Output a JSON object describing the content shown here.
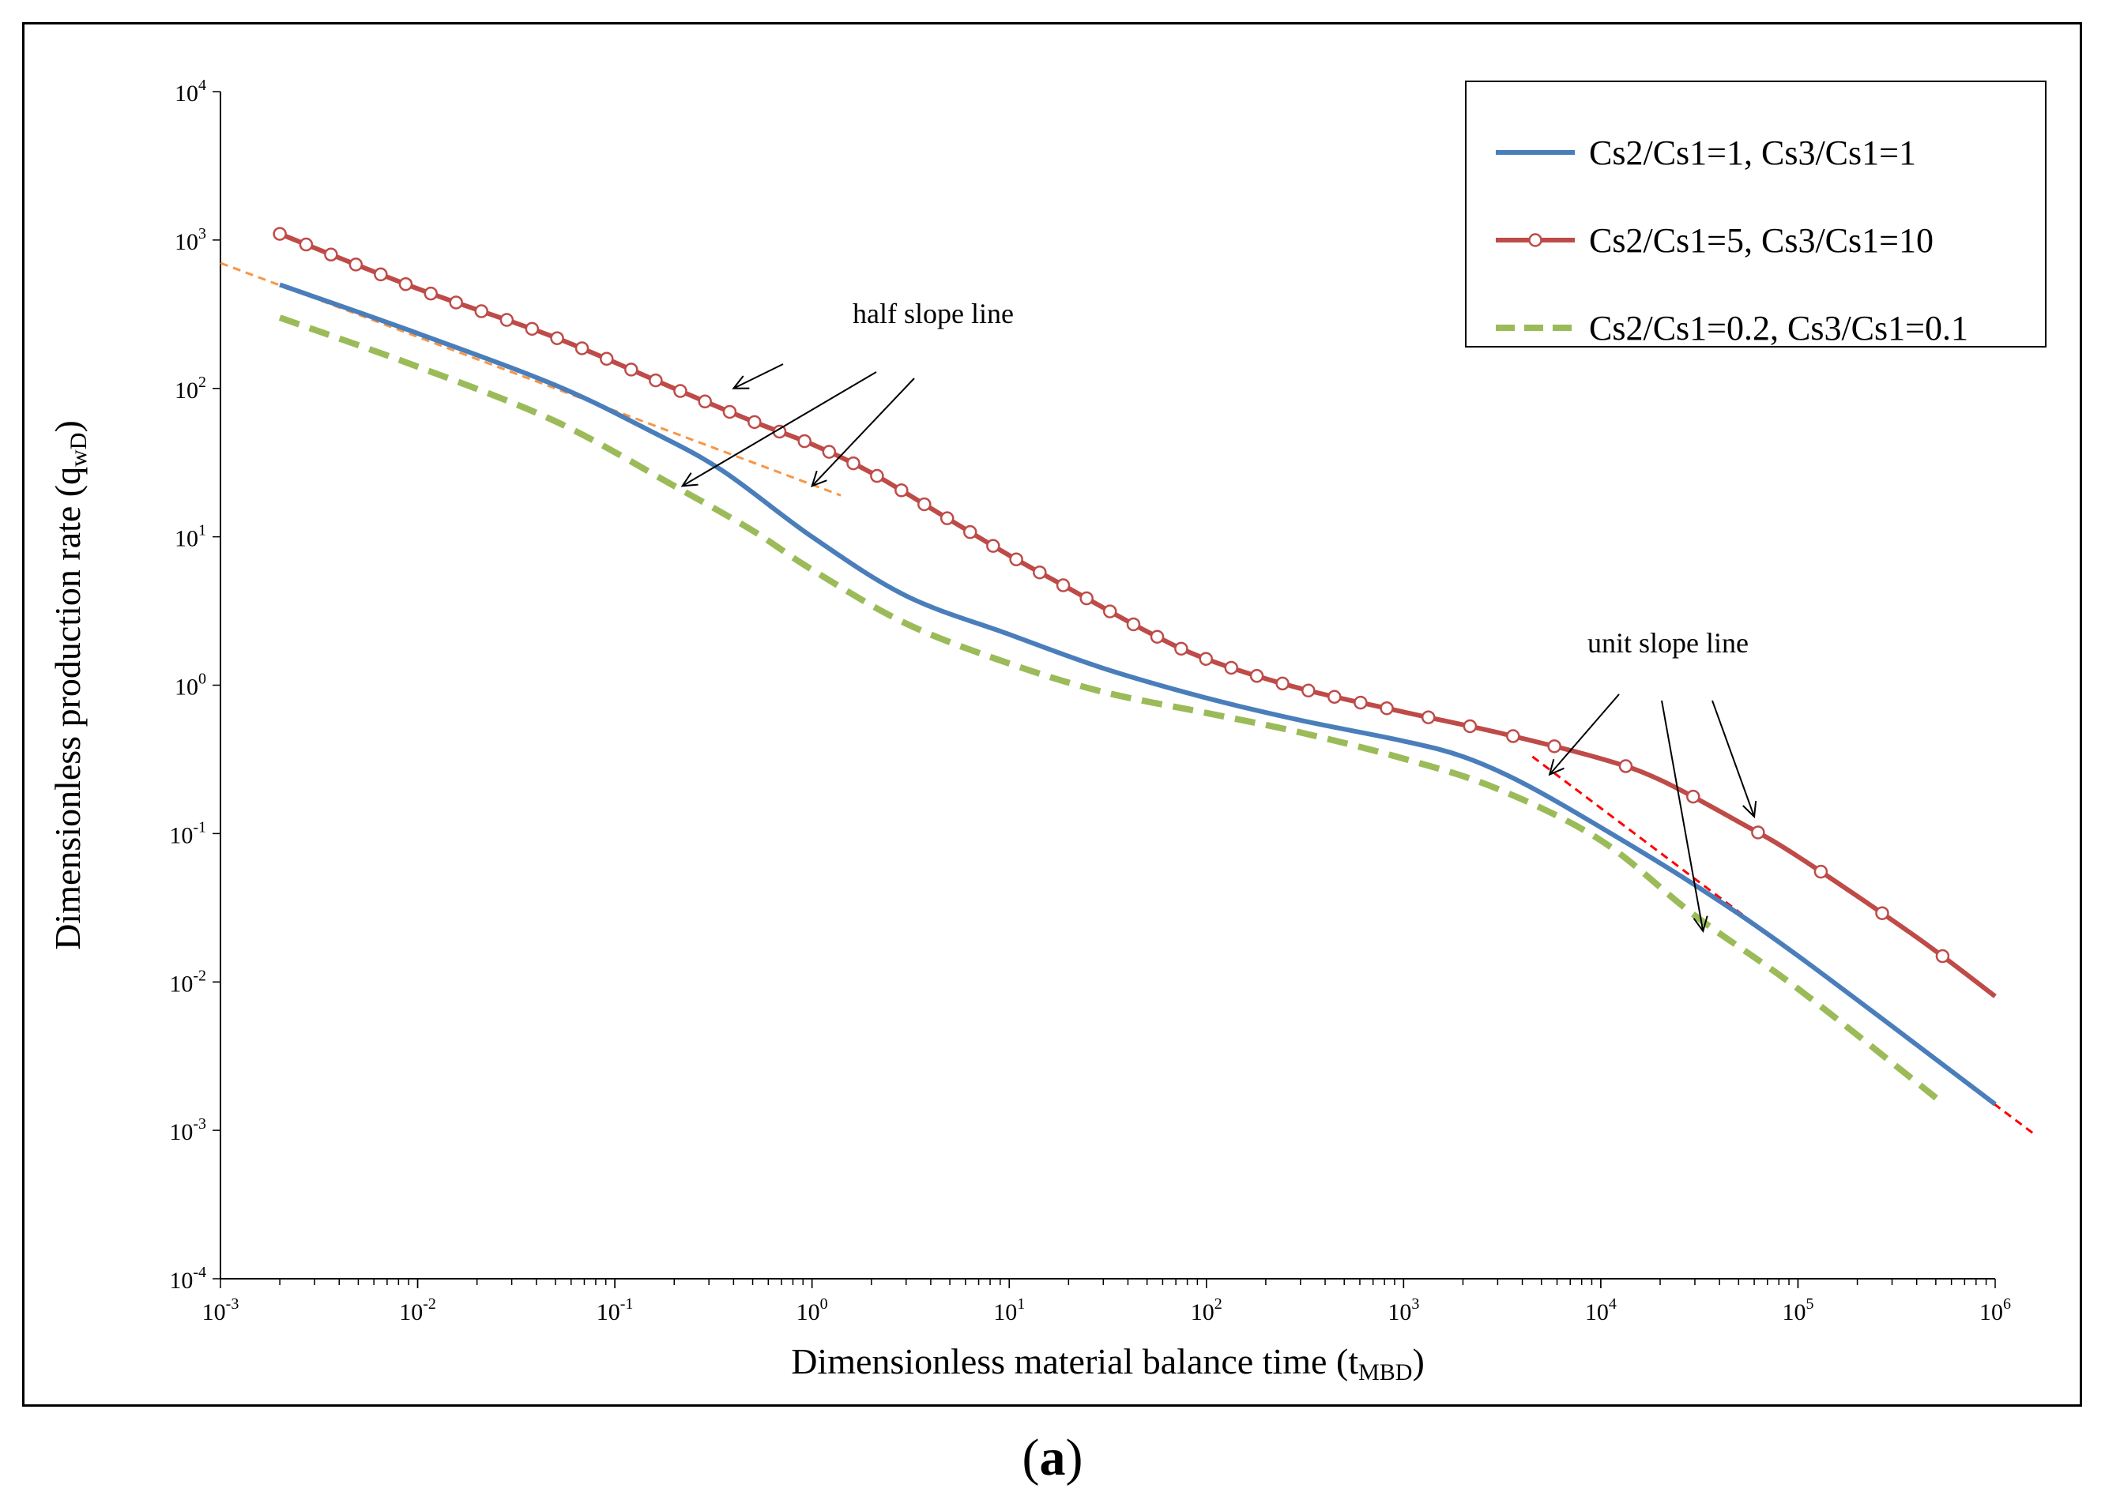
{
  "chart_data": {
    "type": "line",
    "x_scale": "log",
    "y_scale": "log",
    "xlabel": "Dimensionless material balance time",
    "xlabel_symbol": "t",
    "xlabel_symbol_sub": "MBD",
    "ylabel": "Dimensionless production rate",
    "ylabel_symbol": "q",
    "ylabel_symbol_sub": "wD",
    "xlim": [
      0.001,
      1000000
    ],
    "ylim": [
      0.0001,
      10000
    ],
    "x_ticks": [
      {
        "base": "10",
        "exp": "-3"
      },
      {
        "base": "10",
        "exp": "-2"
      },
      {
        "base": "10",
        "exp": "-1"
      },
      {
        "base": "10",
        "exp": "0"
      },
      {
        "base": "10",
        "exp": "1"
      },
      {
        "base": "10",
        "exp": "2"
      },
      {
        "base": "10",
        "exp": "3"
      },
      {
        "base": "10",
        "exp": "4"
      },
      {
        "base": "10",
        "exp": "5"
      },
      {
        "base": "10",
        "exp": "6"
      }
    ],
    "y_ticks": [
      {
        "base": "10",
        "exp": "-4"
      },
      {
        "base": "10",
        "exp": "-3"
      },
      {
        "base": "10",
        "exp": "-2"
      },
      {
        "base": "10",
        "exp": "-1"
      },
      {
        "base": "10",
        "exp": "0"
      },
      {
        "base": "10",
        "exp": "1"
      },
      {
        "base": "10",
        "exp": "2"
      },
      {
        "base": "10",
        "exp": "3"
      },
      {
        "base": "10",
        "exp": "4"
      }
    ],
    "series": [
      {
        "name": "Cs2/Cs1=1, Cs3/Cs1=1",
        "color": "#4a7ebb",
        "style": "solid",
        "marker": "none",
        "x": [
          0.002,
          0.01,
          0.05,
          0.15,
          0.35,
          1,
          3,
          10,
          30,
          100,
          300,
          1000,
          2000,
          4000,
          10000,
          30000,
          100000,
          1000000
        ],
        "y": [
          500,
          235,
          105,
          52,
          28,
          10,
          4,
          2.2,
          1.3,
          0.82,
          0.58,
          0.42,
          0.33,
          0.22,
          0.11,
          0.045,
          0.015,
          0.0015
        ]
      },
      {
        "name": "Cs2/Cs1=5, Cs3/Cs1=10",
        "color": "#be4b48",
        "style": "solid",
        "marker": "circle",
        "x": [
          0.002,
          0.01,
          0.05,
          0.2,
          0.5,
          1,
          2,
          5,
          10,
          20,
          50,
          100,
          300,
          1000,
          3000,
          10000,
          20000,
          50000,
          100000,
          400000,
          1000000
        ],
        "y": [
          1100,
          470,
          220,
          100,
          60,
          42,
          27,
          13,
          7.5,
          4.5,
          2.3,
          1.5,
          0.95,
          0.66,
          0.48,
          0.32,
          0.23,
          0.12,
          0.07,
          0.02,
          0.008
        ]
      },
      {
        "name": "Cs2/Cs1=0.2, Cs3/Cs1=0.1",
        "color": "#9bbb59",
        "style": "dashed",
        "marker": "none",
        "x": [
          0.002,
          0.01,
          0.05,
          0.2,
          0.5,
          1,
          3,
          10,
          30,
          100,
          300,
          1000,
          3000,
          10000,
          30000,
          100000,
          550000
        ],
        "y": [
          300,
          140,
          60,
          22,
          11,
          6,
          2.6,
          1.4,
          0.9,
          0.65,
          0.48,
          0.32,
          0.2,
          0.09,
          0.028,
          0.009,
          0.0015
        ]
      }
    ],
    "reference_lines": [
      {
        "name": "half slope line",
        "color": "#f79646",
        "x": [
          0.001,
          1.4
        ],
        "y": [
          700,
          19
        ]
      },
      {
        "name": "unit slope line",
        "color": "#ff0000",
        "x": [
          4500,
          1600000
        ],
        "y": [
          0.33,
          0.00093
        ]
      }
    ],
    "annotations": [
      {
        "text": "half slope line",
        "targets": [
          [
            0.4,
            100
          ],
          [
            0.22,
            22
          ],
          [
            1,
            22
          ]
        ]
      },
      {
        "text": "unit slope line",
        "targets": [
          [
            5500,
            0.25
          ],
          [
            33000,
            0.022
          ],
          [
            60000,
            0.13
          ]
        ]
      }
    ],
    "legend_position": "top-right"
  },
  "panel_label": "(a)",
  "panel_label_letter": "a"
}
